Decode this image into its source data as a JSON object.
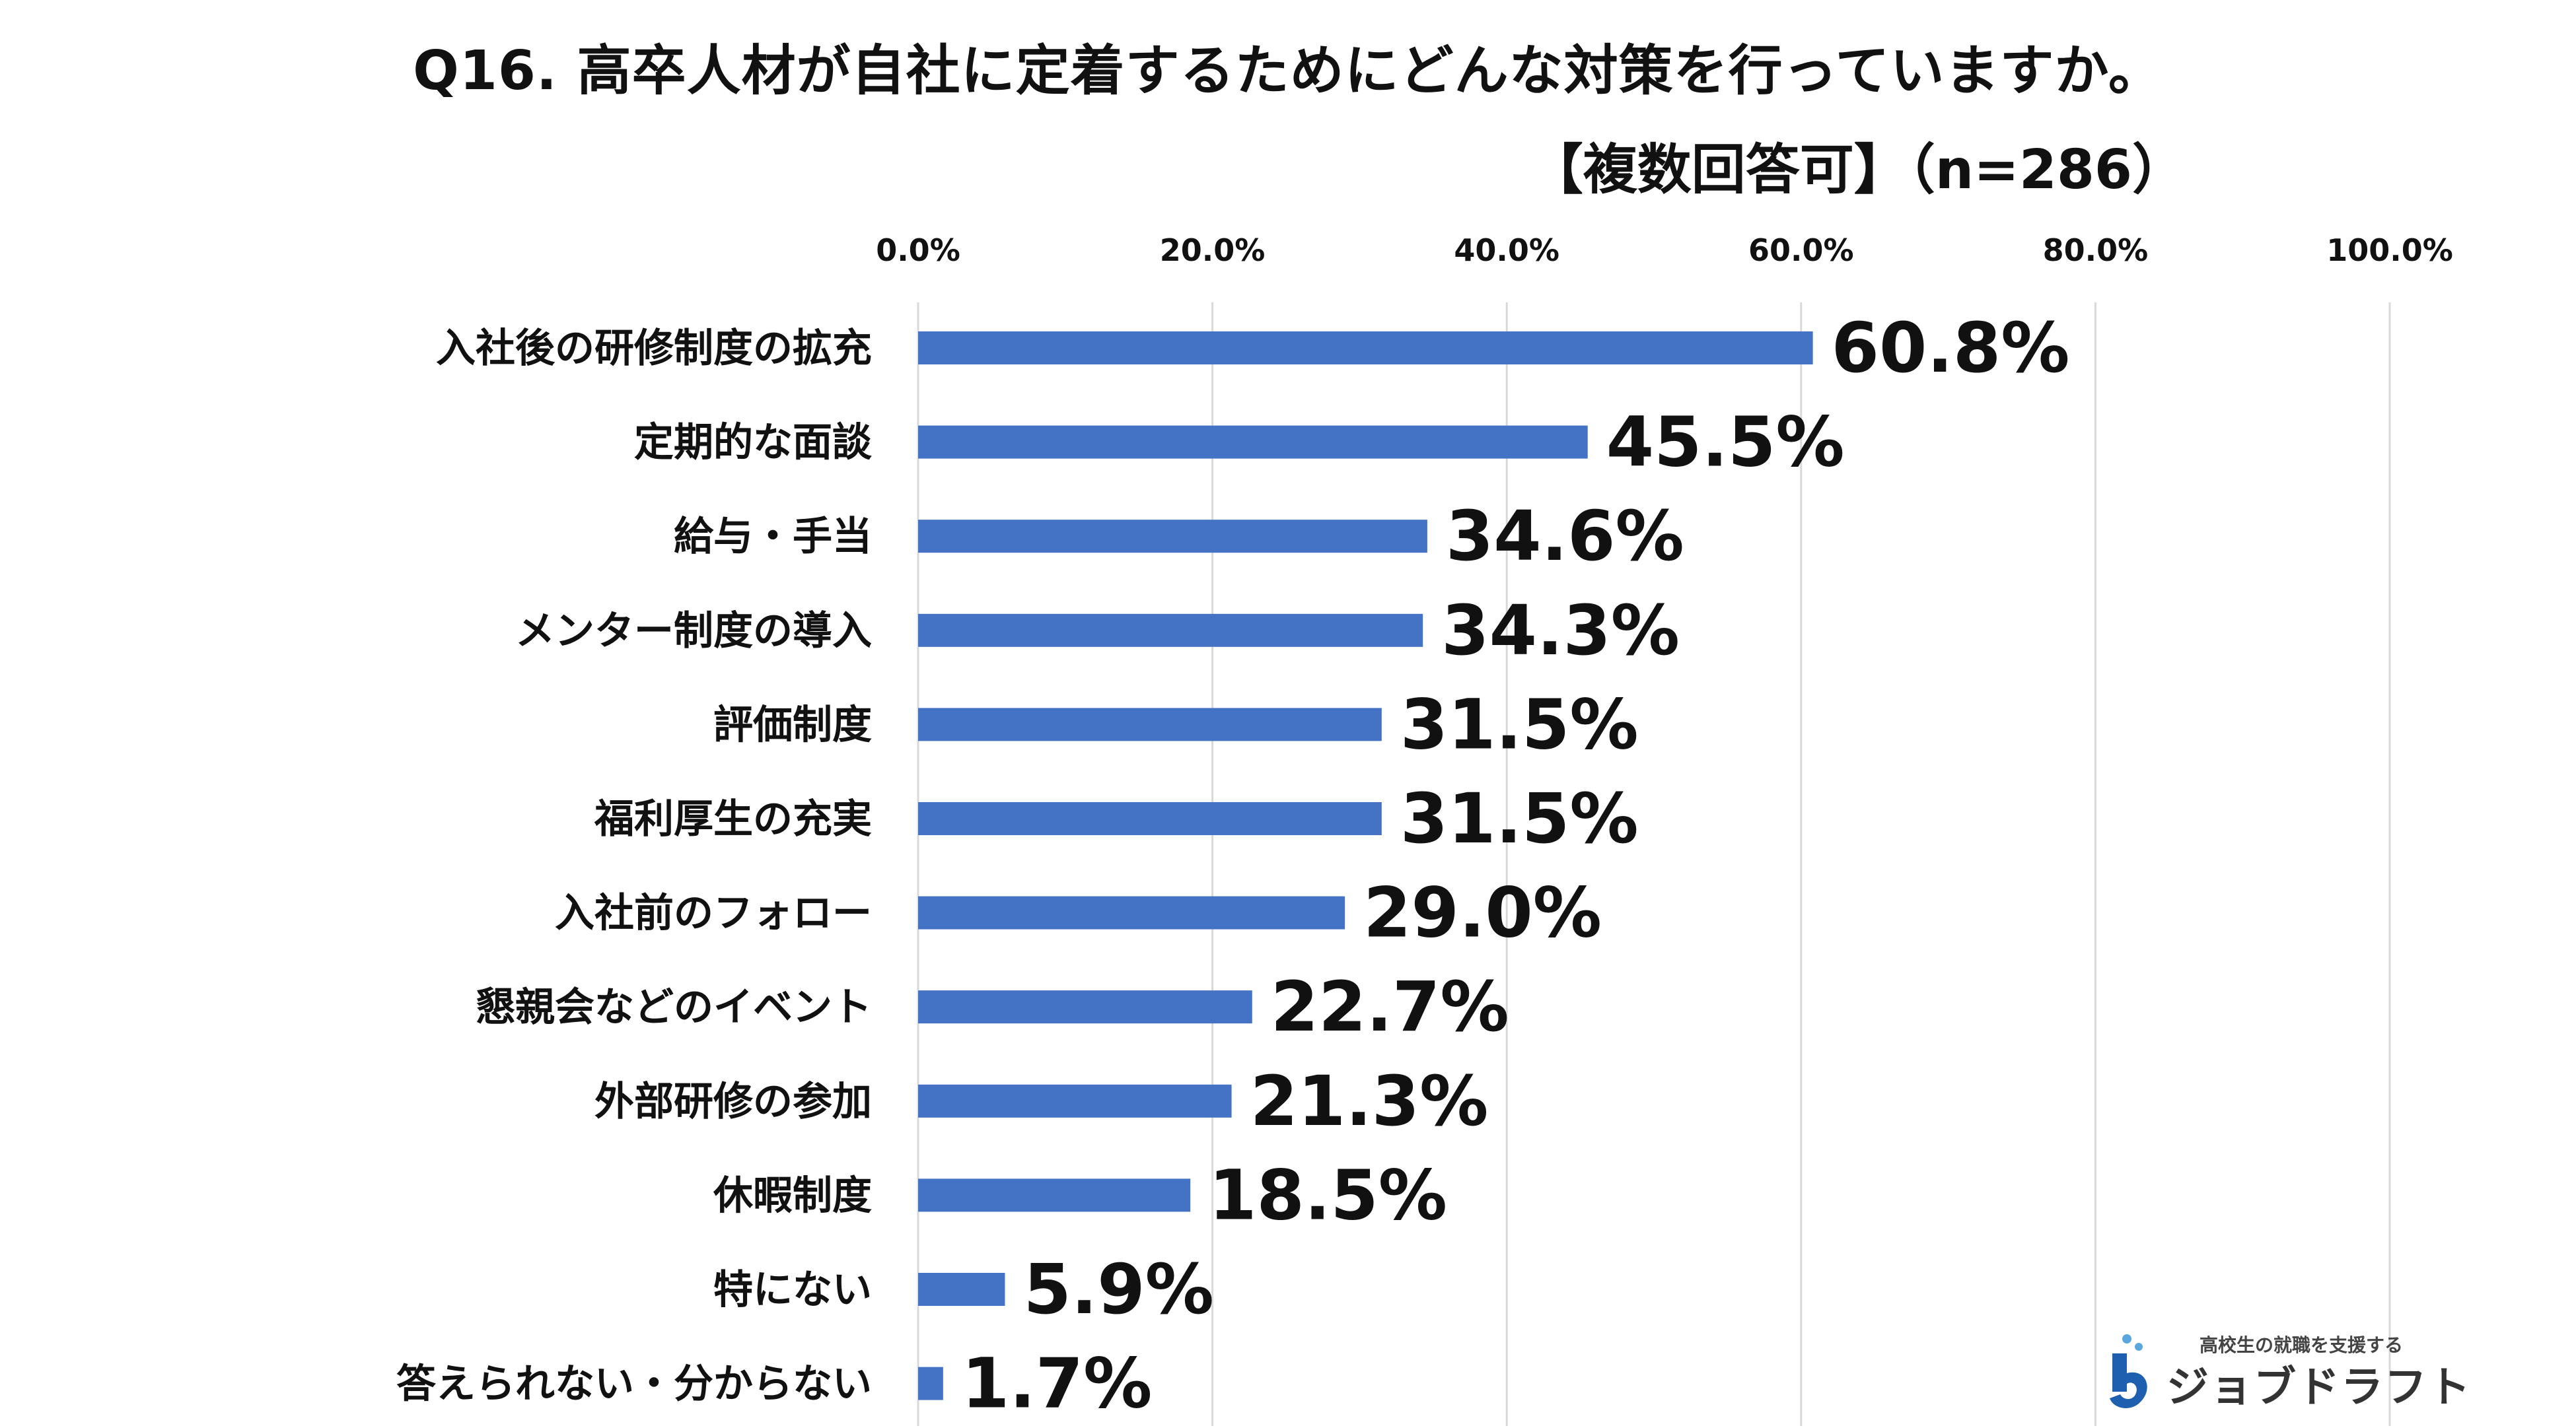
{
  "title": "Q16. 高卒人材が自社に定着するためにどんな対策を行っていますか。",
  "subtitle": "【複数回答可】（n=286）",
  "chart_data": {
    "type": "bar",
    "orientation": "horizontal",
    "title": "Q16. 高卒人材が自社に定着するためにどんな対策を行っていますか。",
    "subtitle": "【複数回答可】（n=286）",
    "xlim": [
      0,
      100
    ],
    "grid": true,
    "ticks": [
      "0.0%",
      "20.0%",
      "40.0%",
      "60.0%",
      "80.0%",
      "100.0%"
    ],
    "tick_values": [
      0,
      20,
      40,
      60,
      80,
      100
    ],
    "bar_color": "#4472C4",
    "categories": [
      "入社後の研修制度の拡充",
      "定期的な面談",
      "給与・手当",
      "メンター制度の導入",
      "評価制度",
      "福利厚生の充実",
      "入社前のフォロー",
      "懇親会などのイベント",
      "外部研修の参加",
      "休暇制度",
      "特にない",
      "答えられない・分からない"
    ],
    "values": [
      60.8,
      45.5,
      34.6,
      34.3,
      31.5,
      31.5,
      29.0,
      22.7,
      21.3,
      18.5,
      5.9,
      1.7
    ],
    "labels": [
      "60.8%",
      "45.5%",
      "34.6%",
      "34.3%",
      "31.5%",
      "31.5%",
      "29.0%",
      "22.7%",
      "21.3%",
      "18.5%",
      "5.9%",
      "1.7%"
    ]
  },
  "logo": {
    "tagline": "高校生の就職を支援する",
    "name": "ジョブドラフト",
    "colors": {
      "primary": "#1F5FAF",
      "accent": "#5AA7E0"
    }
  }
}
